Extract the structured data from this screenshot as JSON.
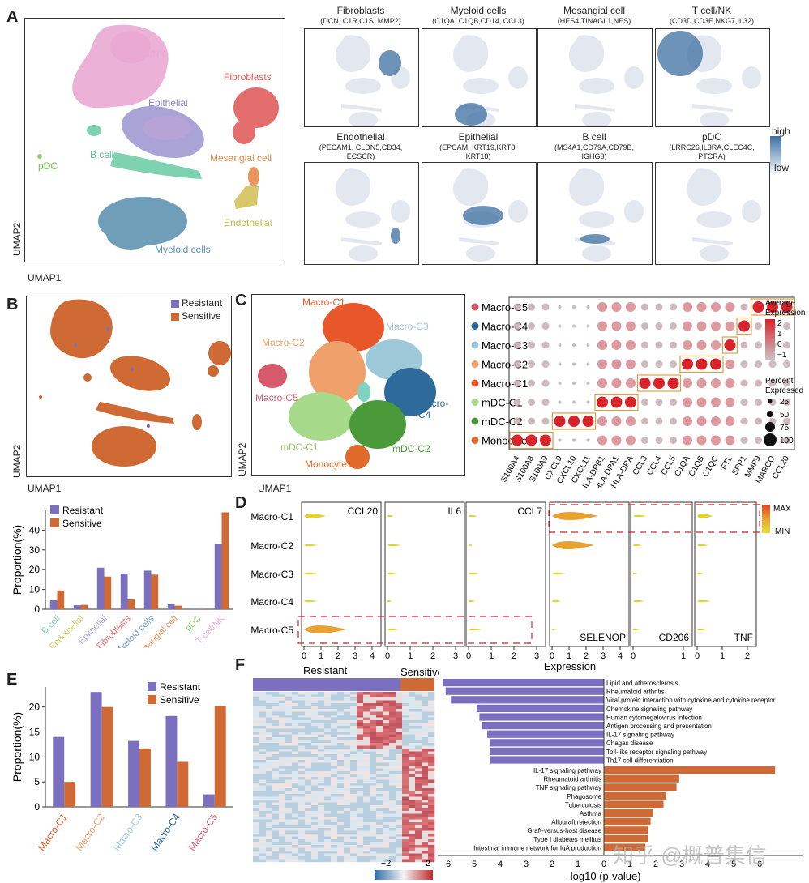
{
  "panels": {
    "A": "A",
    "B": "B",
    "C": "C",
    "D": "D",
    "E": "E",
    "F": "F"
  },
  "umap": {
    "x": "UMAP1",
    "y": "UMAP2"
  },
  "panelA": {
    "clusters": [
      "T cell/NK",
      "Epithelial",
      "Fibroblasts",
      "B cell",
      "pDC",
      "Mesangial cell",
      "Endothelial",
      "Myeloid cells"
    ],
    "colors": {
      "tcell": "#e9a9d3",
      "epi": "#a9a3d6",
      "fib": "#e36c6c",
      "bcell": "#7ed2b0",
      "pdc": "#8bd16b",
      "mes": "#e9975d",
      "endo": "#d8c86a",
      "mye": "#6f9fb8"
    },
    "features": [
      {
        "name": "Fibroblasts",
        "genes": "(DCN, C1R,C1S, MMP2)"
      },
      {
        "name": "Myeloid cells",
        "genes": "(C1QA, C1QB,CD14, CCL3)"
      },
      {
        "name": "Mesangial cell",
        "genes": "(HES4,TINAGL1,NES)"
      },
      {
        "name": "T cell/NK",
        "genes": "(CD3D,CD3E,NKG7,IL32)"
      },
      {
        "name": "Endothelial",
        "genes": "(PECAM1, CLDN5,CD34,",
        "genes2": "ECSCR)"
      },
      {
        "name": "Epithelial",
        "genes": "(EPCAM, KRT19,KRT8,",
        "genes2": "KRT18)"
      },
      {
        "name": "B cell",
        "genes": "(MS4A1,CD79A,CD79B,",
        "genes2": "IGHG3)"
      },
      {
        "name": "pDC",
        "genes": "(LRRC26,IL3RA,CLEC4C,",
        "genes2": "PTCRA)"
      }
    ],
    "legend": {
      "high": "high",
      "low": "low"
    }
  },
  "panelB": {
    "legend": [
      {
        "name": "Resistant",
        "color": "#7b6fbf"
      },
      {
        "name": "Sensitive",
        "color": "#d06a35"
      }
    ]
  },
  "chart_bar_B": {
    "type": "bar",
    "ylabel": "Proportion(%)",
    "categories": [
      "B cell",
      "Endothelial",
      "Epithelial",
      "Fibroblasts",
      "Myeloid cells",
      "Mesangial cell",
      "pDC",
      "T cell/NK"
    ],
    "category_colors": [
      "#7ed2b0",
      "#d8c86a",
      "#a9a3d6",
      "#e36c6c",
      "#6f9fb8",
      "#e9975d",
      "#8bd16b",
      "#e9a9d3"
    ],
    "series": [
      {
        "name": "Resistant",
        "values": [
          4.5,
          2.0,
          21,
          18,
          19.5,
          2.5,
          0.3,
          33
        ]
      },
      {
        "name": "Sensitive",
        "values": [
          9.5,
          2.2,
          16.5,
          5,
          17.5,
          1.8,
          0.3,
          49
        ]
      }
    ],
    "ylim": [
      0,
      50
    ],
    "yticks": [
      0,
      10,
      20,
      30,
      40
    ]
  },
  "panelC": {
    "clusters": [
      {
        "name": "Macro-C1",
        "color": "#e8572a"
      },
      {
        "name": "Macro-C2",
        "color": "#f0a06a"
      },
      {
        "name": "Macro-C3",
        "color": "#9dc8d8"
      },
      {
        "name": "Macro-C4",
        "color": "#2f6b9a"
      },
      {
        "name": "Macro-C5",
        "color": "#d65a6a"
      },
      {
        "name": "mDC-C1",
        "color": "#a6d98a"
      },
      {
        "name": "mDC-C2",
        "color": "#4a9a3a"
      },
      {
        "name": "Monocyte",
        "color": "#e06a2a"
      }
    ]
  },
  "dotplot": {
    "rows": [
      "Macro-C5",
      "Macro-C4",
      "Macro-C3",
      "Macro-C2",
      "Macro-C1",
      "mDC-C1",
      "mDC-C2",
      "Monocyte"
    ],
    "row_colors": [
      "#d65a6a",
      "#2f6b9a",
      "#9dc8d8",
      "#f0a06a",
      "#e8572a",
      "#a6d98a",
      "#4a9a3a",
      "#e06a2a"
    ],
    "genes": [
      "S100A4",
      "S100A8",
      "S100A9",
      "CXCL9",
      "CXCL10",
      "CXCL11",
      "HLA-DPB1",
      "HLA-DPA1",
      "HLA-DRA",
      "CCL3",
      "CCL4",
      "CCL5",
      "C1QA",
      "C1QB",
      "C1QC",
      "FTL",
      "SPP1",
      "MMP9",
      "MARCO",
      "CCL20"
    ],
    "legend_title1": "Average",
    "legend_title2": "Expression",
    "legend_ticks": [
      "2",
      "1",
      "0",
      "−1"
    ],
    "pct_title1": "Percent",
    "pct_title2": "Expressed",
    "pct_ticks": [
      "25",
      "50",
      "75",
      "100"
    ]
  },
  "panelD": {
    "rows": [
      "Macro-C1",
      "Macro-C2",
      "Macro-C3",
      "Macro-C4",
      "Macro-C5"
    ],
    "genes": [
      "CCL20",
      "IL6",
      "CCL7",
      "SELENOP",
      "CD206",
      "TNF"
    ],
    "xlabel": "Expression",
    "ticks": [
      [
        "0",
        "1",
        "2",
        "3",
        "4"
      ],
      [
        "0",
        "1",
        "2",
        "3"
      ],
      [
        "0",
        "1",
        "2",
        "3"
      ],
      [
        "0",
        "1",
        "2",
        "3",
        "4"
      ],
      [
        "0",
        "1"
      ],
      [
        "0",
        "1",
        "2"
      ]
    ],
    "legend": {
      "max": "MAX",
      "min": "MIN"
    }
  },
  "chart_bar_E": {
    "type": "bar",
    "ylabel": "Proportion(%)",
    "categories": [
      "Macro-C1",
      "Macro-C2",
      "Macro-C3",
      "Macro-C4",
      "Macro-C5"
    ],
    "category_colors": [
      "#e8572a",
      "#f0a06a",
      "#9dc8d8",
      "#2f6b9a",
      "#d65a6a"
    ],
    "series": [
      {
        "name": "Resistant",
        "values": [
          14,
          23,
          13.2,
          18.2,
          2.5
        ]
      },
      {
        "name": "Sensitive",
        "values": [
          5,
          20,
          11.7,
          9,
          20.2
        ]
      }
    ],
    "ylim": [
      0,
      24
    ],
    "yticks": [
      0,
      5,
      10,
      15,
      20
    ]
  },
  "panelF": {
    "heat_labels": {
      "resistant": "Resistant",
      "sensitive": "Sensitive"
    },
    "heat_scale": [
      "−2",
      "2"
    ],
    "xlabel": "-log10 (p-value)",
    "xticks": [
      "6",
      "5",
      "4",
      "3",
      "2",
      "1",
      "0",
      "1",
      "2",
      "3",
      "4",
      "5",
      "6"
    ],
    "resistant_terms": [
      {
        "name": "Lipid and atherosclerosis",
        "value": 6.2
      },
      {
        "name": "Rheumatoid arthritis",
        "value": 6.1
      },
      {
        "name": "Viral protein interaction with cytokine and cytokine receptor",
        "value": 5.9
      },
      {
        "name": "Chemokine signaling pathway",
        "value": 4.9
      },
      {
        "name": "Human cytomegalovirus infection",
        "value": 4.8
      },
      {
        "name": "Antigen processing and presentation",
        "value": 4.7
      },
      {
        "name": "IL-17 signaling pathway",
        "value": 4.5
      },
      {
        "name": "Chagas disease",
        "value": 4.4
      },
      {
        "name": "Toll-like receptor signaling pathway",
        "value": 4.4
      },
      {
        "name": "Th17 cell differentiation",
        "value": 4.4
      }
    ],
    "sensitive_terms": [
      {
        "name": "IL-17 signaling pathway",
        "value": 6.6
      },
      {
        "name": "Rheumatoid arthritis",
        "value": 2.9
      },
      {
        "name": "TNF signaling pathway",
        "value": 2.8
      },
      {
        "name": "Phagosome",
        "value": 2.4
      },
      {
        "name": "Tuberculosis",
        "value": 2.3
      },
      {
        "name": "Asthma",
        "value": 1.9
      },
      {
        "name": "Allograft rejection",
        "value": 1.8
      },
      {
        "name": "Graft-versus-host disease",
        "value": 1.7
      },
      {
        "name": "Type I diabetes mellitus",
        "value": 1.7
      },
      {
        "name": "Intestinal immune network for IgA production",
        "value": 1.6
      }
    ]
  },
  "watermark": "知乎 @概普集信"
}
